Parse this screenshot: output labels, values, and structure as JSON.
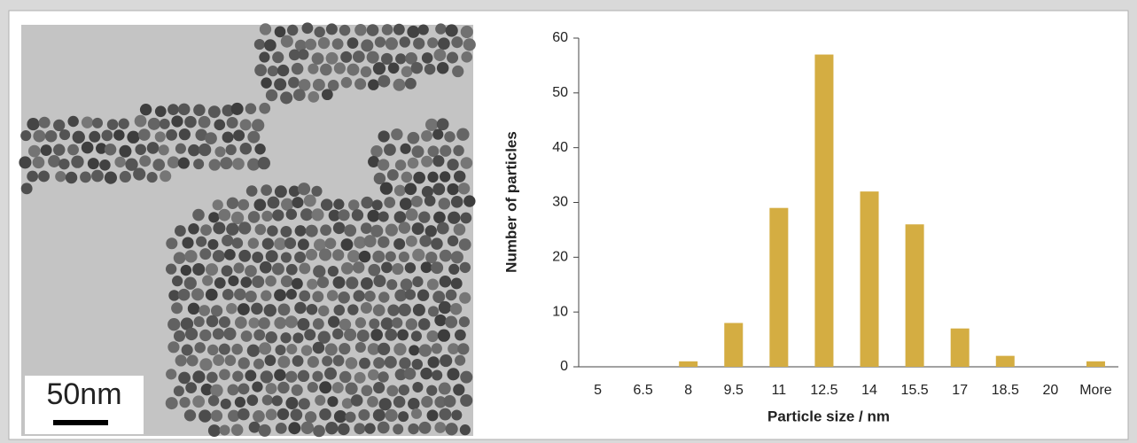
{
  "image": {
    "scale_label": "50nm"
  },
  "chart_data": {
    "type": "bar",
    "x_label": "Particle size / nm",
    "y_label": "Number of particles",
    "categories": [
      "5",
      "6.5",
      "8",
      "9.5",
      "11",
      "12.5",
      "14",
      "15.5",
      "17",
      "18.5",
      "20",
      "More"
    ],
    "values": [
      0,
      0,
      1,
      8,
      29,
      57,
      32,
      26,
      7,
      2,
      0,
      1
    ],
    "color": "#d4ad42",
    "ylim": [
      0,
      60
    ],
    "yticks": [
      0,
      10,
      20,
      30,
      40,
      50,
      60
    ],
    "grid": false
  }
}
